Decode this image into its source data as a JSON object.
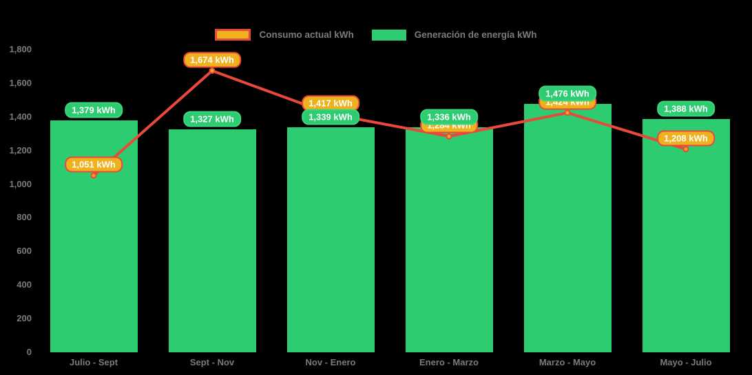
{
  "legend": {
    "items": [
      {
        "label": "Consumo actual kWh",
        "swatch": "line-swatch"
      },
      {
        "label": "Generación de energía kWh",
        "swatch": "bar-swatch"
      }
    ],
    "position": "top"
  },
  "colors": {
    "background": "#000000",
    "bar": "#2ecc71",
    "bar_pill_border": "#3bd67d",
    "line": "#e8493b",
    "yellow": "#f0b11e",
    "point_fill": "#f5a81c",
    "point_border": "#e8493b",
    "axis_text": "#7b7b7b",
    "value_label_text": "#ffffff"
  },
  "chart_data": {
    "type": "bar",
    "subtype": "combo bar + line with value labels",
    "categories": [
      "Julio - Sept",
      "Sept - Nov",
      "Nov - Enero",
      "Enero - Marzo",
      "Marzo - Mayo",
      "Mayo - Julio"
    ],
    "series": [
      {
        "name": "Consumo actual kWh",
        "kind": "line",
        "values": [
          1051,
          1674,
          1417,
          1284,
          1424,
          1208
        ],
        "point_labels": [
          "1,051 kWh",
          "1,674 kWh",
          "1,417 kWh",
          "1,284 kWh",
          "1,424 kWh",
          "1,208 kWh"
        ]
      },
      {
        "name": "Generación de energía kWh",
        "kind": "bar",
        "values": [
          1379,
          1327,
          1339,
          1336,
          1476,
          1388
        ],
        "point_labels": [
          "1,379 kWh",
          "1,327 kWh",
          "1,339 kWh",
          "1,336 kWh",
          "1,476 kWh",
          "1,388 kWh"
        ]
      }
    ],
    "ylim": [
      0,
      1800
    ],
    "ytick_step": 200,
    "ytick_labels": [
      "0",
      "200",
      "400",
      "600",
      "800",
      "1,000",
      "1,200",
      "1,400",
      "1,600",
      "1,800"
    ],
    "xlabel": "",
    "ylabel": "",
    "grid": false,
    "legend_position": "top"
  }
}
